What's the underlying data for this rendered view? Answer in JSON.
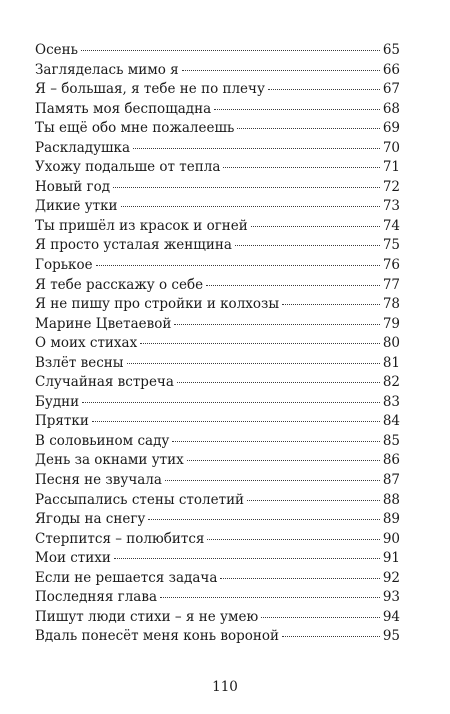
{
  "toc": {
    "entries": [
      {
        "title": "Осень",
        "page": "65"
      },
      {
        "title": "Загляделась мимо я",
        "page": "66"
      },
      {
        "title": "Я – большая, я тебе не по плечу",
        "page": "67"
      },
      {
        "title": "Память моя беспощадна",
        "page": "68"
      },
      {
        "title": "Ты ещё обо мне пожалеешь",
        "page": "69"
      },
      {
        "title": "Раскладушка",
        "page": "70"
      },
      {
        "title": "Ухожу подальше от тепла",
        "page": "71"
      },
      {
        "title": "Новый год",
        "page": "72"
      },
      {
        "title": "Дикие утки",
        "page": "73"
      },
      {
        "title": "Ты пришёл из красок и огней",
        "page": "74"
      },
      {
        "title": "Я просто усталая женщина",
        "page": "75"
      },
      {
        "title": "Горькое",
        "page": "76"
      },
      {
        "title": "Я тебе расскажу о себе",
        "page": "77"
      },
      {
        "title": "Я не пишу про стройки и колхозы",
        "page": "78"
      },
      {
        "title": "Марине Цветаевой",
        "page": "79"
      },
      {
        "title": "О моих стихах",
        "page": "80"
      },
      {
        "title": "Взлёт весны",
        "page": "81"
      },
      {
        "title": "Случайная встреча",
        "page": "82"
      },
      {
        "title": "Будни",
        "page": "83"
      },
      {
        "title": "Прятки",
        "page": "84"
      },
      {
        "title": "В соловьином саду",
        "page": "85"
      },
      {
        "title": "День за окнами утих",
        "page": "86"
      },
      {
        "title": "Песня не звучала",
        "page": "87"
      },
      {
        "title": "Рассыпались стены столетий",
        "page": "88"
      },
      {
        "title": "Ягоды на снегу",
        "page": "89"
      },
      {
        "title": "Стерпится – полюбится",
        "page": "90"
      },
      {
        "title": "Мои стихи",
        "page": "91"
      },
      {
        "title": "Если не решается задача",
        "page": "92"
      },
      {
        "title": "Последняя глава",
        "page": "93"
      },
      {
        "title": "Пишут люди стихи – я не умею",
        "page": "94"
      },
      {
        "title": "Вдаль понесёт меня конь вороной",
        "page": "95"
      }
    ]
  },
  "footer": {
    "page_number": "110"
  }
}
